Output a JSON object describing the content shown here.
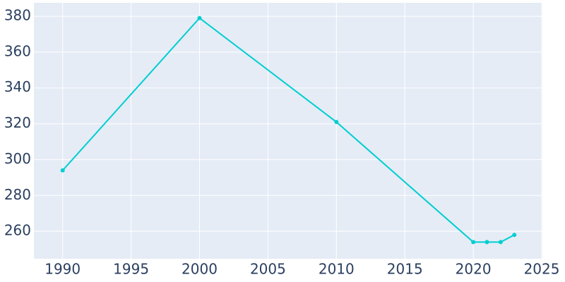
{
  "chart_data": {
    "type": "line",
    "x": [
      1990,
      2000,
      2010,
      2020,
      2021,
      2022,
      2023
    ],
    "series": [
      {
        "color": "#00ced1",
        "values": [
          294,
          379,
          321,
          254,
          254,
          254,
          258
        ]
      }
    ],
    "xlim": [
      1987.9,
      2025.05
    ],
    "xticks": [
      1990,
      1995,
      2000,
      2005,
      2010,
      2015,
      2020,
      2025
    ],
    "ylim": [
      244.7,
      387.5
    ],
    "yticks": [
      260,
      280,
      300,
      320,
      340,
      360,
      380
    ],
    "grid": true,
    "background": "#e5ecf6"
  }
}
